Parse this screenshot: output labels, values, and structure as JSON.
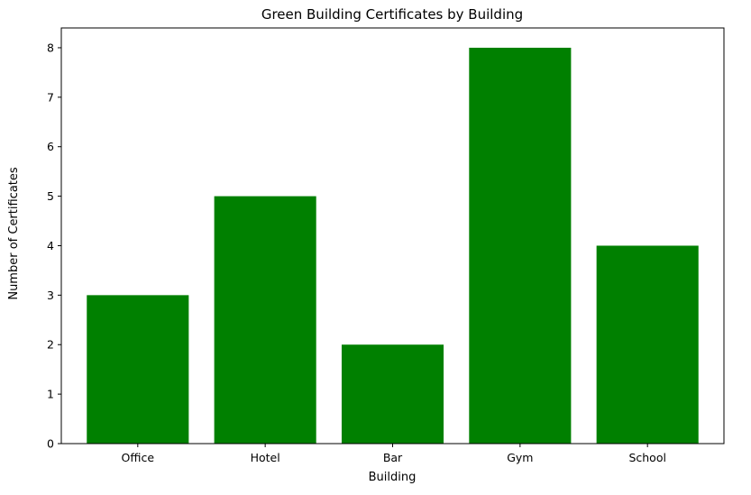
{
  "chart_data": {
    "type": "bar",
    "title": "Green Building Certificates by Building",
    "xlabel": "Building",
    "ylabel": "Number of Certificates",
    "categories": [
      "Office",
      "Hotel",
      "Bar",
      "Gym",
      "School"
    ],
    "values": [
      3,
      5,
      2,
      8,
      4
    ],
    "ylim": [
      0,
      8.4
    ],
    "yticks": [
      0,
      1,
      2,
      3,
      4,
      5,
      6,
      7,
      8
    ],
    "bar_color": "#008000",
    "grid": false,
    "legend": "none"
  }
}
